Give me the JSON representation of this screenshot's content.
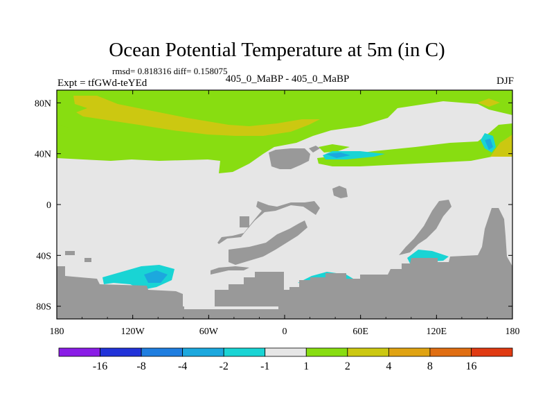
{
  "chart_data": {
    "type": "heatmap",
    "title": "Ocean Potential Temperature at 5m (in C)",
    "stats_line": "rmsd= 0.818316 diff= 0.158075",
    "left_label": "Expt = tfGWd-teYEd",
    "center_label": "405_0_MaBP - 405_0_MaBP",
    "right_label": "DJF",
    "x_ticks": [
      {
        "lon": -180,
        "label": "180"
      },
      {
        "lon": -120,
        "label": "120W"
      },
      {
        "lon": -60,
        "label": "60W"
      },
      {
        "lon": 0,
        "label": "0"
      },
      {
        "lon": 60,
        "label": "60E"
      },
      {
        "lon": 120,
        "label": "120E"
      },
      {
        "lon": 180,
        "label": "180"
      }
    ],
    "y_ticks": [
      {
        "lat": 80,
        "label": "80N"
      },
      {
        "lat": 40,
        "label": "40N"
      },
      {
        "lat": 0,
        "label": "0"
      },
      {
        "lat": -40,
        "label": "40S"
      },
      {
        "lat": -80,
        "label": "80S"
      }
    ],
    "xlim": [
      -180,
      180
    ],
    "ylim": [
      -90,
      90
    ],
    "colorbar": {
      "labels": [
        "-16",
        "-8",
        "-4",
        "-2",
        "-1",
        "1",
        "2",
        "4",
        "8",
        "16"
      ],
      "colors": [
        "#8a1de6",
        "#2233d9",
        "#1f7ee0",
        "#1ca8de",
        "#19d4d4",
        "#e6e6e6",
        "#88dd11",
        "#ccc811",
        "#e0a312",
        "#e06e12",
        "#e03a12"
      ]
    },
    "colors": {
      "land": "#999999",
      "neutral": "#e6e6e6",
      "band_1_2": "#88dd11",
      "band_2_4": "#ccc811",
      "band_m2_m1": "#19d4d4",
      "band_m4_m2": "#1ca8de"
    }
  }
}
